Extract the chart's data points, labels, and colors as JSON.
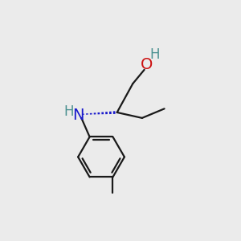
{
  "bg_color": "#ebebeb",
  "bond_color": "#1a1a1a",
  "N_color": "#1a1acc",
  "O_color": "#cc1010",
  "H_color": "#4a9090",
  "font_size_atom": 14,
  "font_size_H": 12,
  "bond_lw": 1.6
}
